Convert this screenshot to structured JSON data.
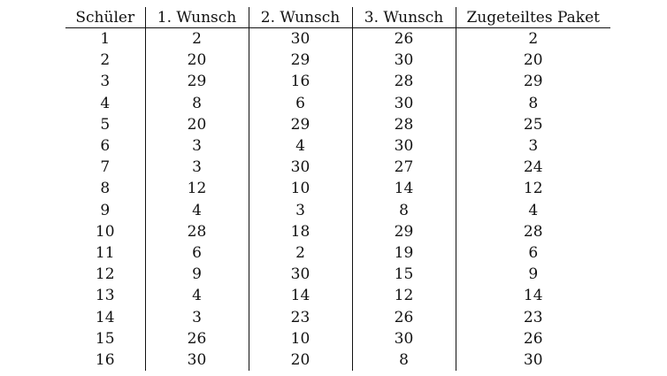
{
  "table": {
    "headers": [
      "Schüler",
      "1. Wunsch",
      "2. Wunsch",
      "3. Wunsch",
      "Zugeteiltes Paket"
    ],
    "rows": [
      [
        "1",
        "2",
        "30",
        "26",
        "2"
      ],
      [
        "2",
        "20",
        "29",
        "30",
        "20"
      ],
      [
        "3",
        "29",
        "16",
        "28",
        "29"
      ],
      [
        "4",
        "8",
        "6",
        "30",
        "8"
      ],
      [
        "5",
        "20",
        "29",
        "28",
        "25"
      ],
      [
        "6",
        "3",
        "4",
        "30",
        "3"
      ],
      [
        "7",
        "3",
        "30",
        "27",
        "24"
      ],
      [
        "8",
        "12",
        "10",
        "14",
        "12"
      ],
      [
        "9",
        "4",
        "3",
        "8",
        "4"
      ],
      [
        "10",
        "28",
        "18",
        "29",
        "28"
      ],
      [
        "11",
        "6",
        "2",
        "19",
        "6"
      ],
      [
        "12",
        "9",
        "30",
        "15",
        "9"
      ],
      [
        "13",
        "4",
        "14",
        "12",
        "14"
      ],
      [
        "14",
        "3",
        "23",
        "26",
        "23"
      ],
      [
        "15",
        "26",
        "10",
        "30",
        "26"
      ],
      [
        "16",
        "30",
        "20",
        "8",
        "30"
      ]
    ]
  }
}
